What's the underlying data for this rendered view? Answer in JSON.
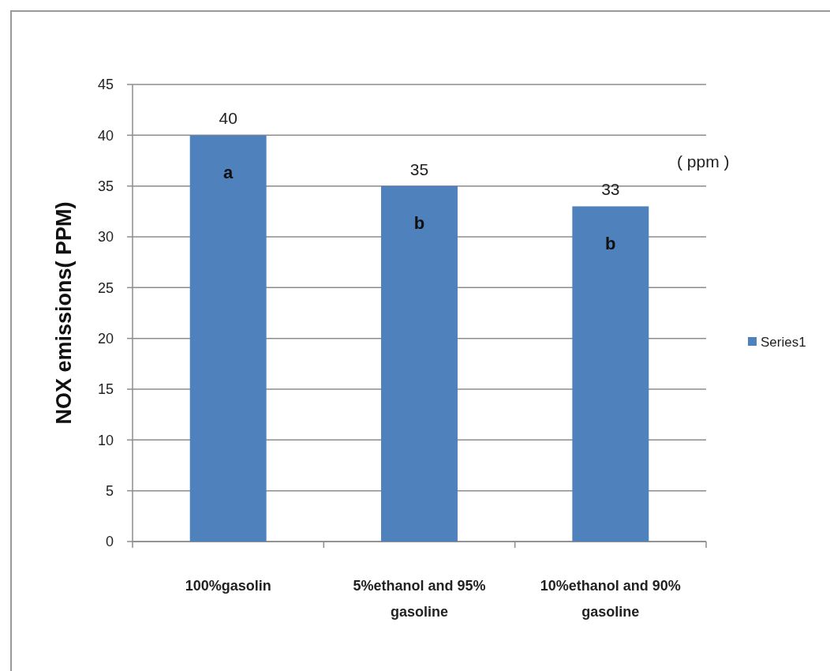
{
  "chart_data": {
    "type": "bar",
    "ylabel": "NOX emissions( PPM)",
    "categories": [
      "100%gasolin",
      "5%ethanol and 95% gasoline",
      "10%ethanol and 90% gasoline"
    ],
    "series": [
      {
        "name": "Series1",
        "color": "#4f81bd",
        "values": [
          40,
          35,
          33
        ]
      }
    ],
    "ylim": [
      0,
      45
    ],
    "yticks": [
      0,
      5,
      10,
      15,
      20,
      25,
      30,
      35,
      40,
      45
    ],
    "grid": "y",
    "legend": "right",
    "data_labels": true,
    "annotations": [
      "a",
      "b",
      "b",
      "( ppm )"
    ]
  }
}
